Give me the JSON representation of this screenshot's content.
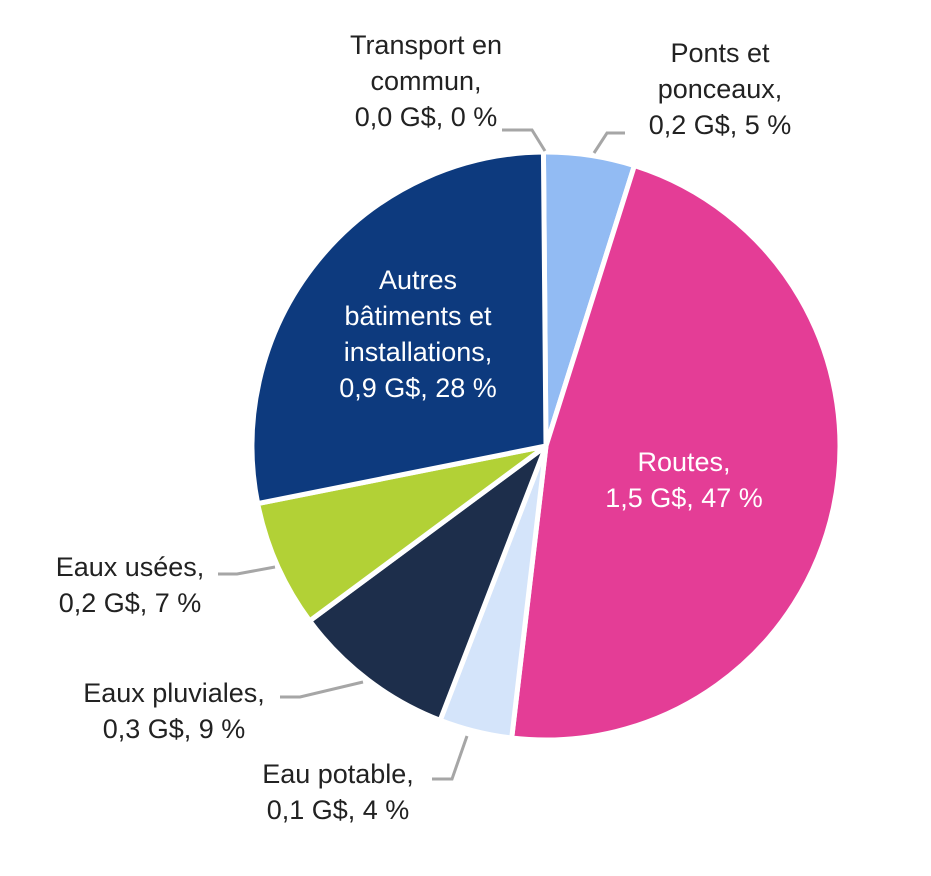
{
  "chart_data": {
    "type": "pie",
    "title": "",
    "unit": "G$",
    "slices": [
      {
        "label": "Transport en commun",
        "value": 0.0,
        "percent": 0,
        "label_lines": [
          "Transport en",
          "commun,",
          "0,0 G$, 0 %"
        ],
        "color": "#e9eef5",
        "label_color": "#222222"
      },
      {
        "label": "Ponts et ponceaux",
        "value": 0.2,
        "percent": 5,
        "label_lines": [
          "Ponts et",
          "ponceaux,",
          "0,2 G$, 5 %"
        ],
        "color": "#92bbf3",
        "label_color": "#222222"
      },
      {
        "label": "Routes",
        "value": 1.5,
        "percent": 47,
        "label_lines": [
          "Routes,",
          "1,5 G$, 47 %"
        ],
        "color": "#e43d96",
        "label_color": "#ffffff"
      },
      {
        "label": "Eau potable",
        "value": 0.1,
        "percent": 4,
        "label_lines": [
          "Eau potable,",
          "0,1 G$, 4 %"
        ],
        "color": "#d4e4fa",
        "label_color": "#222222"
      },
      {
        "label": "Eaux pluviales",
        "value": 0.3,
        "percent": 9,
        "label_lines": [
          "Eaux pluviales,",
          "0,3 G$, 9 %"
        ],
        "color": "#1d2e4b",
        "label_color": "#222222"
      },
      {
        "label": "Eaux usées",
        "value": 0.2,
        "percent": 7,
        "label_lines": [
          "Eaux usées,",
          "0,2 G$, 7 %"
        ],
        "color": "#b2d136",
        "label_color": "#222222"
      },
      {
        "label": "Autres bâtiments et installations",
        "value": 0.9,
        "percent": 28,
        "label_lines": [
          "Autres",
          "bâtiments et",
          "installations,",
          "0,9 G$, 28 %"
        ],
        "color": "#0d3a7e",
        "label_color": "#ffffff"
      }
    ],
    "leader_line_color": "#a6a6a6",
    "slice_border_color": "#ffffff"
  }
}
